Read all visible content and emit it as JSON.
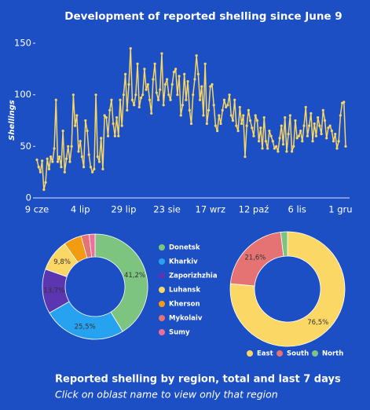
{
  "chart_data": [
    {
      "type": "line",
      "title": "Development of reported shelling since June 9",
      "y_label": "Shellings",
      "categories": [
        "9 cze",
        null,
        null,
        null,
        null,
        null,
        null,
        null,
        null,
        null,
        null,
        null,
        null,
        null,
        null,
        null,
        null,
        null,
        null,
        null,
        null,
        null,
        null,
        null,
        null,
        "4 lip",
        null,
        null,
        null,
        null,
        null,
        null,
        null,
        null,
        null,
        null,
        null,
        null,
        null,
        null,
        null,
        null,
        null,
        null,
        null,
        null,
        null,
        null,
        null,
        null,
        "29 lip",
        null,
        null,
        null,
        null,
        null,
        null,
        null,
        null,
        null,
        null,
        null,
        null,
        null,
        null,
        null,
        null,
        null,
        null,
        null,
        null,
        null,
        null,
        null,
        null,
        "23 sie",
        null,
        null,
        null,
        null,
        null,
        null,
        null,
        null,
        null,
        null,
        null,
        null,
        null,
        null,
        null,
        null,
        null,
        null,
        null,
        null,
        null,
        null,
        null,
        null,
        "17 wrz",
        null,
        null,
        null,
        null,
        null,
        null,
        null,
        null,
        null,
        null,
        null,
        null,
        null,
        null,
        null,
        null,
        null,
        null,
        null,
        null,
        null,
        null,
        null,
        null,
        "12 paź",
        null,
        null,
        null,
        null,
        null,
        null,
        null,
        null,
        null,
        null,
        null,
        null,
        null,
        null,
        null,
        null,
        null,
        null,
        null,
        null,
        null,
        null,
        null,
        null,
        "6 lis",
        null,
        null,
        null,
        null,
        null,
        null,
        null,
        null,
        null,
        null,
        null,
        null,
        null,
        null,
        null,
        null,
        null,
        null,
        null,
        null,
        null,
        null,
        null,
        null,
        "1 gru",
        null,
        null,
        null
      ],
      "values": [
        37,
        30,
        25,
        36,
        8,
        15,
        38,
        28,
        40,
        35,
        48,
        95,
        35,
        40,
        30,
        65,
        25,
        38,
        50,
        35,
        50,
        100,
        70,
        80,
        45,
        55,
        40,
        30,
        75,
        65,
        42,
        30,
        25,
        28,
        100,
        40,
        35,
        58,
        28,
        80,
        78,
        60,
        85,
        95,
        72,
        60,
        78,
        60,
        95,
        70,
        100,
        120,
        85,
        110,
        145,
        95,
        90,
        100,
        130,
        88,
        97,
        100,
        125,
        105,
        110,
        95,
        82,
        115,
        130,
        102,
        95,
        105,
        140,
        90,
        110,
        115,
        100,
        95,
        110,
        122,
        125,
        100,
        118,
        80,
        90,
        120,
        95,
        113,
        85,
        72,
        100,
        115,
        138,
        120,
        95,
        108,
        80,
        130,
        72,
        85,
        108,
        110,
        90,
        70,
        65,
        80,
        72,
        85,
        95,
        88,
        90,
        100,
        80,
        75,
        95,
        70,
        65,
        88,
        72,
        80,
        40,
        70,
        85,
        75,
        68,
        60,
        80,
        75,
        55,
        68,
        48,
        78,
        55,
        48,
        65,
        60,
        55,
        48,
        50,
        45,
        58,
        70,
        52,
        78,
        45,
        62,
        80,
        45,
        50,
        75,
        58,
        60,
        65,
        55,
        70,
        88,
        60,
        70,
        82,
        55,
        72,
        60,
        78,
        70,
        62,
        85,
        75,
        58,
        68,
        70,
        65,
        55,
        62,
        48,
        55,
        80,
        92,
        93,
        50
      ],
      "color": "#f7d663",
      "ylim": [
        0,
        150
      ],
      "yticks": [
        0,
        50,
        100,
        150
      ],
      "grid": false
    },
    {
      "type": "pie",
      "donut": true,
      "categories": [
        "Donetsk",
        "Kharkiv",
        "Zaporizhzhia",
        "Luhansk",
        "Kherson",
        "Mykolaiv",
        "Sumy"
      ],
      "values": [
        41.2,
        25.5,
        13.7,
        9.8,
        5.5,
        2.5,
        1.8
      ],
      "value_labels": [
        "41,2%",
        "25,5%",
        "13,7%",
        "9,8%",
        null,
        null,
        null
      ],
      "colors": [
        "#7cc47f",
        "#27a2f0",
        "#5b36b0",
        "#fbd766",
        "#f39c12",
        "#e57373",
        "#ef6f9a"
      ],
      "legend": "right"
    },
    {
      "type": "pie",
      "donut": true,
      "categories": [
        "East",
        "South",
        "North"
      ],
      "values": [
        76.5,
        21.6,
        1.9
      ],
      "value_labels": [
        "76,5%",
        "21,6%",
        null
      ],
      "colors": [
        "#fbd766",
        "#e57373",
        "#7cc47f"
      ],
      "legend": "bottom"
    }
  ],
  "footer": {
    "title": "Reported shelling by region, total and last 7 days",
    "subtitle": "Click on oblast name to view only that region"
  }
}
